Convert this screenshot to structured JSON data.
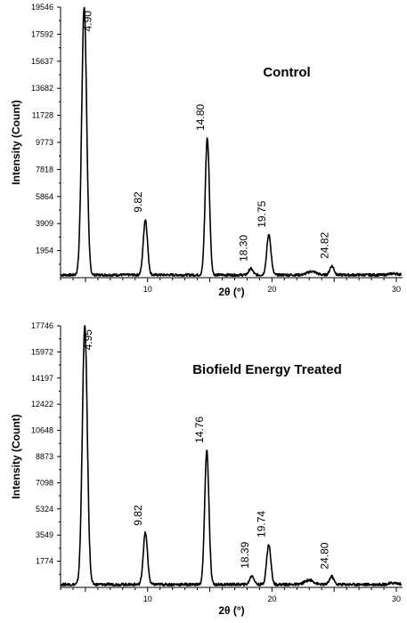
{
  "chart_data": [
    {
      "type": "line",
      "title": "Control",
      "xlabel": "2θ (°)",
      "ylabel": "Intensity (Count)",
      "xlim": [
        3,
        30.5
      ],
      "ylim": [
        0,
        19546
      ],
      "xticks": [
        "10",
        "20",
        "30"
      ],
      "yticks": [
        "19546",
        "17592",
        "15637",
        "13682",
        "11728",
        "9773",
        "7818",
        "5864",
        "3909",
        "1954"
      ],
      "peaks": [
        {
          "x": 4.9,
          "y": 19546,
          "label": "4.90"
        },
        {
          "x": 9.82,
          "y": 4200,
          "label": "9.82"
        },
        {
          "x": 14.8,
          "y": 10100,
          "label": "14.80"
        },
        {
          "x": 18.3,
          "y": 650,
          "label": "18.30"
        },
        {
          "x": 19.75,
          "y": 3100,
          "label": "19.75"
        },
        {
          "x": 24.82,
          "y": 850,
          "label": "24.82"
        }
      ],
      "minor_peaks": [
        {
          "x": 23.2,
          "y": 450
        },
        {
          "x": 29.8,
          "y": 300
        }
      ],
      "baseline": 200,
      "grid": false
    },
    {
      "type": "line",
      "title": "Biofield Energy Treated",
      "xlabel": "2θ (°)",
      "ylabel": "Intensity (Count)",
      "xlim": [
        3,
        30.5
      ],
      "ylim": [
        0,
        17746
      ],
      "xticks": [
        "10",
        "20",
        "30"
      ],
      "yticks": [
        "17746",
        "15972",
        "14197",
        "12422",
        "10648",
        "8873",
        "7098",
        "5324",
        "3549",
        "1774"
      ],
      "peaks": [
        {
          "x": 4.95,
          "y": 17746,
          "label": "4.95"
        },
        {
          "x": 9.82,
          "y": 3700,
          "label": "9.82"
        },
        {
          "x": 14.76,
          "y": 9300,
          "label": "14.76"
        },
        {
          "x": 18.39,
          "y": 800,
          "label": "18.39"
        },
        {
          "x": 19.74,
          "y": 2900,
          "label": "19.74"
        },
        {
          "x": 24.8,
          "y": 750,
          "label": "24.80"
        }
      ],
      "minor_peaks": [
        {
          "x": 23.0,
          "y": 500
        },
        {
          "x": 29.8,
          "y": 300
        }
      ],
      "baseline": 200,
      "grid": false
    }
  ]
}
